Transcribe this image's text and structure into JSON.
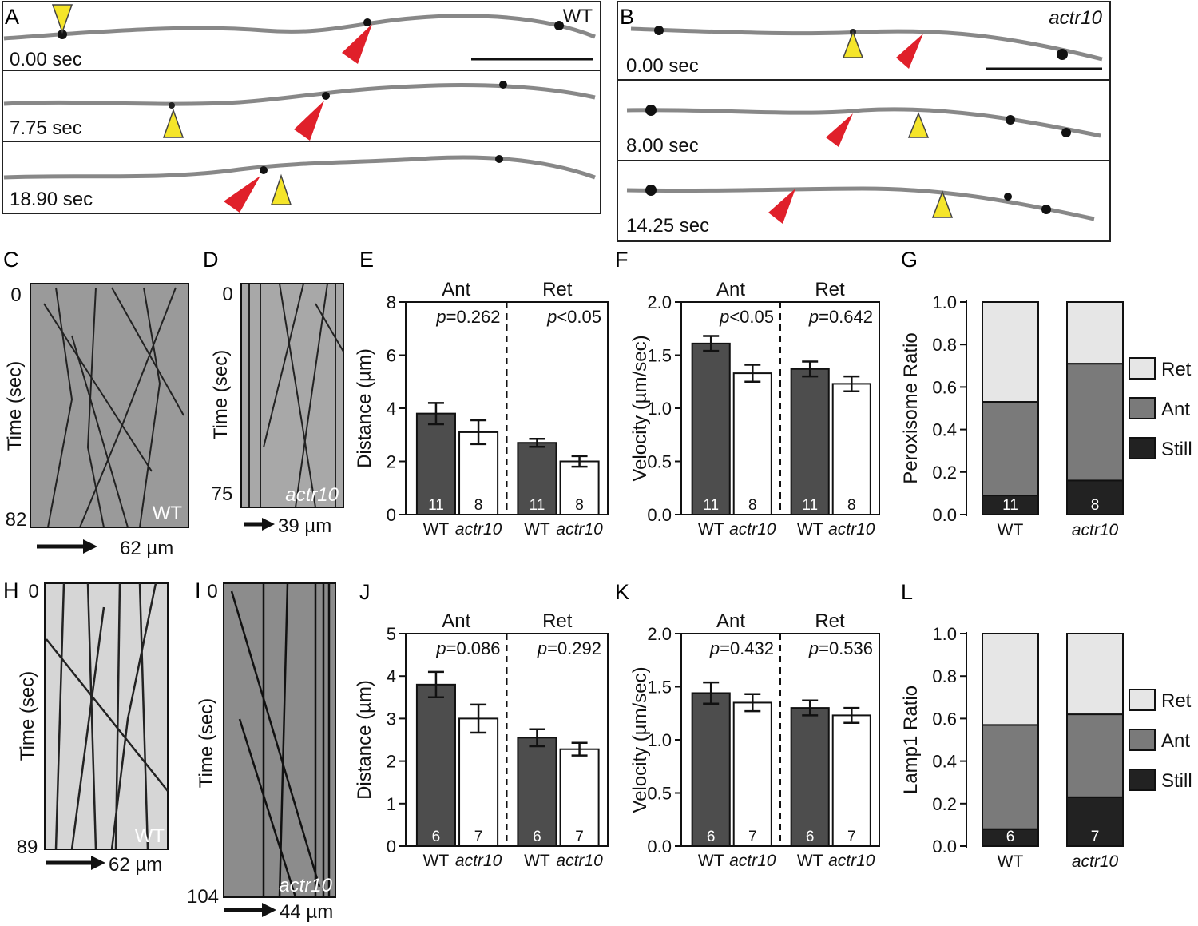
{
  "panels": {
    "A": {
      "letter": "A",
      "genotype": "WT",
      "times": [
        "0.00 sec",
        "7.75 sec",
        "18.90 sec"
      ]
    },
    "B": {
      "letter": "B",
      "genotype": "actr10",
      "times": [
        "0.00 sec",
        "8.00 sec",
        "14.25 sec"
      ]
    },
    "C": {
      "letter": "C",
      "genotype": "WT",
      "time_label": "Time (sec)",
      "t_start": "0",
      "t_end": "82",
      "scale": "62 µm"
    },
    "D": {
      "letter": "D",
      "genotype": "actr10",
      "time_label": "Time (sec)",
      "t_start": "0",
      "t_end": "75",
      "scale": "39 µm"
    },
    "H": {
      "letter": "H",
      "genotype": "WT",
      "time_label": "Time (sec)",
      "t_start": "0",
      "t_end": "89",
      "scale": "62 µm"
    },
    "I": {
      "letter": "I",
      "genotype": "actr10",
      "time_label": "Time (sec)",
      "t_start": "0",
      "t_end": "104",
      "scale": "44 µm"
    }
  },
  "colors": {
    "wt_bar": "#4d4d4d",
    "mutant_bar": "#ffffff",
    "ret": "#e6e6e6",
    "ant": "#7a7a7a",
    "still": "#222222",
    "red_arrow": "#e0202a",
    "yellow_arrow": "#f5e52a"
  },
  "chart_data": [
    {
      "panel": "E",
      "type": "bar",
      "ylabel": "Distance (µm)",
      "ylim": [
        0,
        8
      ],
      "yticks": [
        "0",
        "2",
        "4",
        "6",
        "8"
      ],
      "groups": [
        "Ant",
        "Ret"
      ],
      "pvalues": [
        "p=0.262",
        "p<0.05"
      ],
      "categories": [
        "WT",
        "actr10",
        "WT",
        "actr10"
      ],
      "values": [
        3.8,
        3.1,
        2.7,
        2.0
      ],
      "errors": [
        0.4,
        0.45,
        0.15,
        0.2
      ],
      "n": [
        "11",
        "8",
        "11",
        "8"
      ]
    },
    {
      "panel": "F",
      "type": "bar",
      "ylabel": "Velocity (µm/sec)",
      "ylim": [
        0,
        2
      ],
      "yticks": [
        "0.0",
        "0.5",
        "1.0",
        "1.5",
        "2.0"
      ],
      "groups": [
        "Ant",
        "Ret"
      ],
      "pvalues": [
        "p<0.05",
        "p=0.642"
      ],
      "categories": [
        "WT",
        "actr10",
        "WT",
        "actr10"
      ],
      "values": [
        1.61,
        1.33,
        1.37,
        1.23
      ],
      "errors": [
        0.07,
        0.08,
        0.07,
        0.07
      ],
      "n": [
        "11",
        "8",
        "11",
        "8"
      ]
    },
    {
      "panel": "G",
      "type": "bar",
      "stacked": true,
      "ylabel": "Peroxisome Ratio",
      "ylim": [
        0,
        1
      ],
      "yticks": [
        "0.0",
        "0.2",
        "0.4",
        "0.6",
        "0.8",
        "1.0"
      ],
      "categories": [
        "WT",
        "actr10"
      ],
      "n": [
        "11",
        "8"
      ],
      "series": [
        {
          "name": "Still",
          "values": [
            0.09,
            0.16
          ]
        },
        {
          "name": "Ant",
          "values": [
            0.44,
            0.55
          ]
        },
        {
          "name": "Ret",
          "values": [
            0.47,
            0.29
          ]
        }
      ],
      "legend": [
        "Ret",
        "Ant",
        "Still"
      ]
    },
    {
      "panel": "J",
      "type": "bar",
      "ylabel": "Distance (µm)",
      "ylim": [
        0,
        5
      ],
      "yticks": [
        "0",
        "1",
        "2",
        "3",
        "4",
        "5"
      ],
      "groups": [
        "Ant",
        "Ret"
      ],
      "pvalues": [
        "p=0.086",
        "p=0.292"
      ],
      "categories": [
        "WT",
        "actr10",
        "WT",
        "actr10"
      ],
      "values": [
        3.8,
        3.0,
        2.55,
        2.28
      ],
      "errors": [
        0.3,
        0.33,
        0.2,
        0.15
      ],
      "n": [
        "6",
        "7",
        "6",
        "7"
      ]
    },
    {
      "panel": "K",
      "type": "bar",
      "ylabel": "Velocity (µm/sec)",
      "ylim": [
        0,
        2
      ],
      "yticks": [
        "0.0",
        "0.5",
        "1.0",
        "1.5",
        "2.0"
      ],
      "groups": [
        "Ant",
        "Ret"
      ],
      "pvalues": [
        "p=0.432",
        "p=0.536"
      ],
      "categories": [
        "WT",
        "actr10",
        "WT",
        "actr10"
      ],
      "values": [
        1.44,
        1.35,
        1.3,
        1.23
      ],
      "errors": [
        0.1,
        0.08,
        0.07,
        0.07
      ],
      "n": [
        "6",
        "7",
        "6",
        "7"
      ]
    },
    {
      "panel": "L",
      "type": "bar",
      "stacked": true,
      "ylabel": "Lamp1 Ratio",
      "ylim": [
        0,
        1
      ],
      "yticks": [
        "0.0",
        "0.2",
        "0.4",
        "0.6",
        "0.8",
        "1.0"
      ],
      "categories": [
        "WT",
        "actr10"
      ],
      "n": [
        "6",
        "7"
      ],
      "series": [
        {
          "name": "Still",
          "values": [
            0.08,
            0.23
          ]
        },
        {
          "name": "Ant",
          "values": [
            0.49,
            0.39
          ]
        },
        {
          "name": "Ret",
          "values": [
            0.43,
            0.38
          ]
        }
      ],
      "legend": [
        "Ret",
        "Ant",
        "Still"
      ]
    }
  ]
}
